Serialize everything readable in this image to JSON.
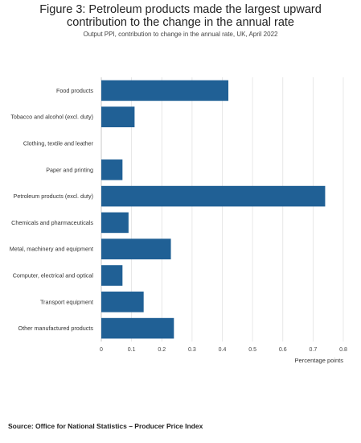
{
  "title": "Figure 3: Petroleum products made the largest upward contribution to the change in the annual rate",
  "subtitle": "Output PPI, contribution to change in the annual rate, UK, April 2022",
  "source": "Source: Office for National Statistics – Producer Price Index",
  "colors": {
    "bar": "#206095",
    "grid": "#e2e2e2"
  },
  "chart_data": {
    "type": "bar",
    "orientation": "horizontal",
    "categories": [
      "Food products",
      "Tobacco and alcohol (excl. duty)",
      "Clothing, textile and leather",
      "Paper and printing",
      "Petroleum products (excl. duty)",
      "Chemicals and pharmaceuticals",
      "Metal, machinery and equipment",
      "Computer, electrical and optical",
      "Transport equipment",
      "Other manufactured products"
    ],
    "values": [
      0.42,
      0.11,
      0.0,
      0.07,
      0.74,
      0.09,
      0.23,
      0.07,
      0.14,
      0.24
    ],
    "xlabel": "Percentage points",
    "xlim": [
      0,
      0.8
    ],
    "xticks": [
      "0",
      "0.1",
      "0.2",
      "0.3",
      "0.4",
      "0.5",
      "0.6",
      "0.7",
      "0.8"
    ],
    "grid": true
  }
}
